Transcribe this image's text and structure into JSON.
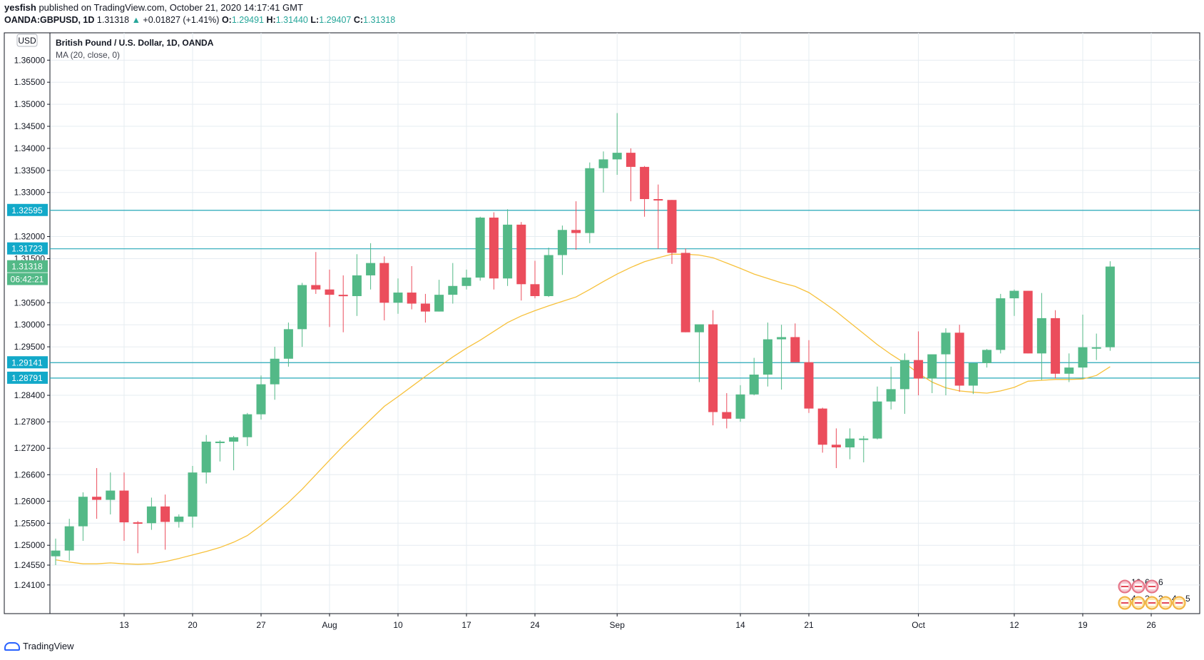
{
  "header": {
    "author": "yesfish",
    "published_text": "published on TradingView.com, October 21, 2020 14:17:41 GMT",
    "symbol": "OANDA:GBPUSD, 1D",
    "last": "1.31318",
    "arrow": "▲",
    "change": "+0.01827 (+1.41%)",
    "o_label": "O:",
    "o_value": "1.29491",
    "h_label": "H:",
    "h_value": "1.31440",
    "l_label": "L:",
    "l_value": "1.29407",
    "c_label": "C:",
    "c_value": "1.31318"
  },
  "footer": {
    "brand": "TradingView"
  },
  "colors": {
    "up": "#53b987",
    "down": "#eb4d5c",
    "ma": "#f7c13b",
    "hline": "#26a8b8",
    "grid": "#e6ecf1",
    "label_teal": "#12a9c9",
    "label_green": "#53b987"
  },
  "chart_data": {
    "type": "candlestick",
    "title": "British Pound / U.S. Dollar, 1D, OANDA",
    "indicator": "MA (20, close, 0)",
    "currency_badge": "USD",
    "ylim": [
      1.2345,
      1.3662
    ],
    "y_ticks": [
      1.241,
      1.2455,
      1.25,
      1.255,
      1.26,
      1.266,
      1.272,
      1.278,
      1.284,
      1.295,
      1.3,
      1.305,
      1.315,
      1.32,
      1.33,
      1.335,
      1.34,
      1.345,
      1.35,
      1.355,
      1.36
    ],
    "y_tick_labels": [
      "1.24100",
      "1.24550",
      "1.25000",
      "1.25500",
      "1.26000",
      "1.26600",
      "1.27200",
      "1.27800",
      "1.28400",
      "1.29500",
      "1.30000",
      "1.30500",
      "1.31500",
      "1.32000",
      "1.33000",
      "1.33500",
      "1.34000",
      "1.34500",
      "1.35000",
      "1.35500",
      "1.36000"
    ],
    "x_ticks": [
      {
        "label": "13",
        "index": 5
      },
      {
        "label": "20",
        "index": 10
      },
      {
        "label": "27",
        "index": 15
      },
      {
        "label": "Aug",
        "index": 20
      },
      {
        "label": "10",
        "index": 25
      },
      {
        "label": "17",
        "index": 30
      },
      {
        "label": "24",
        "index": 35
      },
      {
        "label": "Sep",
        "index": 41
      },
      {
        "label": "14",
        "index": 50
      },
      {
        "label": "21",
        "index": 55
      },
      {
        "label": "Oct",
        "index": 63
      },
      {
        "label": "12",
        "index": 70
      },
      {
        "label": "19",
        "index": 75
      },
      {
        "label": "26",
        "index": 80
      }
    ],
    "horizontal_lines": [
      1.32595,
      1.31723,
      1.29141,
      1.28791
    ],
    "price_labels": [
      {
        "text": "1.32595",
        "value": 1.32595,
        "style": "teal"
      },
      {
        "text": "1.31723",
        "value": 1.31723,
        "style": "teal"
      },
      {
        "text": "1.31318",
        "value": 1.31318,
        "style": "green"
      },
      {
        "text": "06:42:21",
        "value": 1.3103,
        "style": "green"
      },
      {
        "text": "1.29141",
        "value": 1.29141,
        "style": "teal"
      },
      {
        "text": "1.28791",
        "value": 1.28791,
        "style": "teal"
      }
    ],
    "candles": [
      {
        "o": 1.2475,
        "h": 1.2515,
        "l": 1.2455,
        "c": 1.2488
      },
      {
        "o": 1.2488,
        "h": 1.256,
        "l": 1.2465,
        "c": 1.2543
      },
      {
        "o": 1.2543,
        "h": 1.262,
        "l": 1.251,
        "c": 1.261
      },
      {
        "o": 1.261,
        "h": 1.2675,
        "l": 1.256,
        "c": 1.2603
      },
      {
        "o": 1.2603,
        "h": 1.2665,
        "l": 1.257,
        "c": 1.2624
      },
      {
        "o": 1.2624,
        "h": 1.2665,
        "l": 1.251,
        "c": 1.2552
      },
      {
        "o": 1.2552,
        "h": 1.2555,
        "l": 1.2482,
        "c": 1.255
      },
      {
        "o": 1.255,
        "h": 1.2608,
        "l": 1.2535,
        "c": 1.2588
      },
      {
        "o": 1.2588,
        "h": 1.2615,
        "l": 1.249,
        "c": 1.2553
      },
      {
        "o": 1.2553,
        "h": 1.257,
        "l": 1.254,
        "c": 1.2565
      },
      {
        "o": 1.2565,
        "h": 1.268,
        "l": 1.254,
        "c": 1.2665
      },
      {
        "o": 1.2665,
        "h": 1.275,
        "l": 1.264,
        "c": 1.2735
      },
      {
        "o": 1.2735,
        "h": 1.2738,
        "l": 1.269,
        "c": 1.2735
      },
      {
        "o": 1.2735,
        "h": 1.2748,
        "l": 1.267,
        "c": 1.2745
      },
      {
        "o": 1.2745,
        "h": 1.28,
        "l": 1.2725,
        "c": 1.2797
      },
      {
        "o": 1.2797,
        "h": 1.2885,
        "l": 1.2785,
        "c": 1.2865
      },
      {
        "o": 1.2865,
        "h": 1.295,
        "l": 1.283,
        "c": 1.2923
      },
      {
        "o": 1.2923,
        "h": 1.3005,
        "l": 1.2905,
        "c": 1.299
      },
      {
        "o": 1.299,
        "h": 1.3095,
        "l": 1.295,
        "c": 1.309
      },
      {
        "o": 1.309,
        "h": 1.3165,
        "l": 1.307,
        "c": 1.308
      },
      {
        "o": 1.308,
        "h": 1.3125,
        "l": 1.2995,
        "c": 1.3068
      },
      {
        "o": 1.3068,
        "h": 1.3112,
        "l": 1.2983,
        "c": 1.3065
      },
      {
        "o": 1.3065,
        "h": 1.316,
        "l": 1.302,
        "c": 1.3112
      },
      {
        "o": 1.3112,
        "h": 1.3185,
        "l": 1.308,
        "c": 1.314
      },
      {
        "o": 1.314,
        "h": 1.3155,
        "l": 1.301,
        "c": 1.305
      },
      {
        "o": 1.305,
        "h": 1.3105,
        "l": 1.3025,
        "c": 1.3073
      },
      {
        "o": 1.3073,
        "h": 1.3133,
        "l": 1.3035,
        "c": 1.3048
      },
      {
        "o": 1.3048,
        "h": 1.307,
        "l": 1.3005,
        "c": 1.303
      },
      {
        "o": 1.303,
        "h": 1.3102,
        "l": 1.303,
        "c": 1.3068
      },
      {
        "o": 1.3068,
        "h": 1.314,
        "l": 1.3048,
        "c": 1.3088
      },
      {
        "o": 1.3088,
        "h": 1.3125,
        "l": 1.308,
        "c": 1.3107
      },
      {
        "o": 1.3107,
        "h": 1.3245,
        "l": 1.31,
        "c": 1.3243
      },
      {
        "o": 1.3243,
        "h": 1.3255,
        "l": 1.308,
        "c": 1.3105
      },
      {
        "o": 1.3105,
        "h": 1.3262,
        "l": 1.3088,
        "c": 1.3227
      },
      {
        "o": 1.3227,
        "h": 1.3233,
        "l": 1.3055,
        "c": 1.3092
      },
      {
        "o": 1.3092,
        "h": 1.3145,
        "l": 1.306,
        "c": 1.3065
      },
      {
        "o": 1.3065,
        "h": 1.3175,
        "l": 1.3063,
        "c": 1.3158
      },
      {
        "o": 1.3158,
        "h": 1.3225,
        "l": 1.3113,
        "c": 1.3215
      },
      {
        "o": 1.3215,
        "h": 1.328,
        "l": 1.317,
        "c": 1.3208
      },
      {
        "o": 1.3208,
        "h": 1.3368,
        "l": 1.3185,
        "c": 1.3355
      },
      {
        "o": 1.3355,
        "h": 1.3393,
        "l": 1.33,
        "c": 1.3375
      },
      {
        "o": 1.3375,
        "h": 1.348,
        "l": 1.334,
        "c": 1.339
      },
      {
        "o": 1.339,
        "h": 1.34,
        "l": 1.328,
        "c": 1.3358
      },
      {
        "o": 1.3358,
        "h": 1.336,
        "l": 1.3245,
        "c": 1.3285
      },
      {
        "o": 1.3285,
        "h": 1.3318,
        "l": 1.3172,
        "c": 1.3283
      },
      {
        "o": 1.3283,
        "h": 1.3283,
        "l": 1.3138,
        "c": 1.3163
      },
      {
        "o": 1.3163,
        "h": 1.3173,
        "l": 1.2983,
        "c": 1.2983
      },
      {
        "o": 1.2983,
        "h": 1.3,
        "l": 1.287,
        "c": 1.3001
      },
      {
        "o": 1.3001,
        "h": 1.3033,
        "l": 1.2772,
        "c": 1.2802
      },
      {
        "o": 1.2802,
        "h": 1.2845,
        "l": 1.2765,
        "c": 1.2787
      },
      {
        "o": 1.2787,
        "h": 1.2863,
        "l": 1.278,
        "c": 1.2842
      },
      {
        "o": 1.2842,
        "h": 1.2925,
        "l": 1.284,
        "c": 1.2887
      },
      {
        "o": 1.2887,
        "h": 1.3005,
        "l": 1.286,
        "c": 1.2967
      },
      {
        "o": 1.2967,
        "h": 1.3,
        "l": 1.2853,
        "c": 1.2972
      },
      {
        "o": 1.2972,
        "h": 1.3003,
        "l": 1.2915,
        "c": 1.2915
      },
      {
        "o": 1.2915,
        "h": 1.2965,
        "l": 1.28,
        "c": 1.281
      },
      {
        "o": 1.281,
        "h": 1.2812,
        "l": 1.271,
        "c": 1.2728
      },
      {
        "o": 1.2728,
        "h": 1.2765,
        "l": 1.2675,
        "c": 1.2722
      },
      {
        "o": 1.2722,
        "h": 1.2765,
        "l": 1.2695,
        "c": 1.2742
      },
      {
        "o": 1.2742,
        "h": 1.2748,
        "l": 1.2688,
        "c": 1.2742
      },
      {
        "o": 1.2742,
        "h": 1.286,
        "l": 1.274,
        "c": 1.2826
      },
      {
        "o": 1.2826,
        "h": 1.2905,
        "l": 1.2808,
        "c": 1.2854
      },
      {
        "o": 1.2854,
        "h": 1.2935,
        "l": 1.2798,
        "c": 1.292
      },
      {
        "o": 1.292,
        "h": 1.2985,
        "l": 1.284,
        "c": 1.2878
      },
      {
        "o": 1.2878,
        "h": 1.2925,
        "l": 1.2845,
        "c": 1.2933
      },
      {
        "o": 1.2933,
        "h": 1.2992,
        "l": 1.284,
        "c": 1.2982
      },
      {
        "o": 1.2982,
        "h": 1.3,
        "l": 1.2848,
        "c": 1.2862
      },
      {
        "o": 1.2862,
        "h": 1.2908,
        "l": 1.2843,
        "c": 1.2913
      },
      {
        "o": 1.2913,
        "h": 1.2945,
        "l": 1.2903,
        "c": 1.2943
      },
      {
        "o": 1.2943,
        "h": 1.307,
        "l": 1.2935,
        "c": 1.306
      },
      {
        "o": 1.306,
        "h": 1.308,
        "l": 1.302,
        "c": 1.3077
      },
      {
        "o": 1.3077,
        "h": 1.3077,
        "l": 1.2935,
        "c": 1.2935
      },
      {
        "o": 1.2935,
        "h": 1.3072,
        "l": 1.2875,
        "c": 1.3015
      },
      {
        "o": 1.3015,
        "h": 1.3033,
        "l": 1.2878,
        "c": 1.2889
      },
      {
        "o": 1.2889,
        "h": 1.2935,
        "l": 1.287,
        "c": 1.2903
      },
      {
        "o": 1.2903,
        "h": 1.3023,
        "l": 1.288,
        "c": 1.2949
      },
      {
        "o": 1.2949,
        "h": 1.298,
        "l": 1.292,
        "c": 1.2949
      },
      {
        "o": 1.2949,
        "h": 1.3144,
        "l": 1.2941,
        "c": 1.3132
      }
    ],
    "ma_points": [
      [
        0,
        1.2467
      ],
      [
        1,
        1.2462
      ],
      [
        2,
        1.2458
      ],
      [
        3,
        1.2458
      ],
      [
        4,
        1.246
      ],
      [
        5,
        1.2458
      ],
      [
        6,
        1.2457
      ],
      [
        7,
        1.2458
      ],
      [
        8,
        1.2463
      ],
      [
        9,
        1.247
      ],
      [
        10,
        1.2478
      ],
      [
        11,
        1.2486
      ],
      [
        12,
        1.2495
      ],
      [
        13,
        1.2507
      ],
      [
        14,
        1.2522
      ],
      [
        15,
        1.2545
      ],
      [
        16,
        1.257
      ],
      [
        17,
        1.2597
      ],
      [
        18,
        1.2627
      ],
      [
        19,
        1.266
      ],
      [
        20,
        1.2693
      ],
      [
        21,
        1.2725
      ],
      [
        22,
        1.2755
      ],
      [
        23,
        1.2785
      ],
      [
        24,
        1.2815
      ],
      [
        25,
        1.2837
      ],
      [
        26,
        1.286
      ],
      [
        27,
        1.2883
      ],
      [
        28,
        1.2905
      ],
      [
        29,
        1.2927
      ],
      [
        30,
        1.2947
      ],
      [
        31,
        1.2965
      ],
      [
        32,
        1.2985
      ],
      [
        33,
        1.3005
      ],
      [
        34,
        1.302
      ],
      [
        35,
        1.3032
      ],
      [
        36,
        1.3043
      ],
      [
        37,
        1.3053
      ],
      [
        38,
        1.3063
      ],
      [
        39,
        1.308
      ],
      [
        40,
        1.3098
      ],
      [
        41,
        1.3115
      ],
      [
        42,
        1.313
      ],
      [
        43,
        1.3143
      ],
      [
        44,
        1.3152
      ],
      [
        45,
        1.316
      ],
      [
        46,
        1.316
      ],
      [
        47,
        1.3158
      ],
      [
        48,
        1.3152
      ],
      [
        49,
        1.314
      ],
      [
        50,
        1.3128
      ],
      [
        51,
        1.3115
      ],
      [
        52,
        1.3105
      ],
      [
        53,
        1.3095
      ],
      [
        54,
        1.3087
      ],
      [
        55,
        1.3073
      ],
      [
        56,
        1.3052
      ],
      [
        57,
        1.303
      ],
      [
        58,
        1.3005
      ],
      [
        59,
        1.298
      ],
      [
        60,
        1.2955
      ],
      [
        61,
        1.2933
      ],
      [
        62,
        1.2913
      ],
      [
        63,
        1.289
      ],
      [
        64,
        1.287
      ],
      [
        65,
        1.2857
      ],
      [
        66,
        1.285
      ],
      [
        67,
        1.2847
      ],
      [
        68,
        1.2845
      ],
      [
        69,
        1.285
      ],
      [
        70,
        1.2858
      ],
      [
        71,
        1.2872
      ],
      [
        72,
        1.2874
      ],
      [
        73,
        1.2876
      ],
      [
        74,
        1.2876
      ],
      [
        75,
        1.2877
      ],
      [
        76,
        1.2885
      ],
      [
        77,
        1.2905
      ]
    ],
    "events": {
      "row1": [
        "16",
        "6",
        "6"
      ],
      "row2": [
        "4",
        "2",
        "3",
        "4",
        "5"
      ]
    }
  }
}
